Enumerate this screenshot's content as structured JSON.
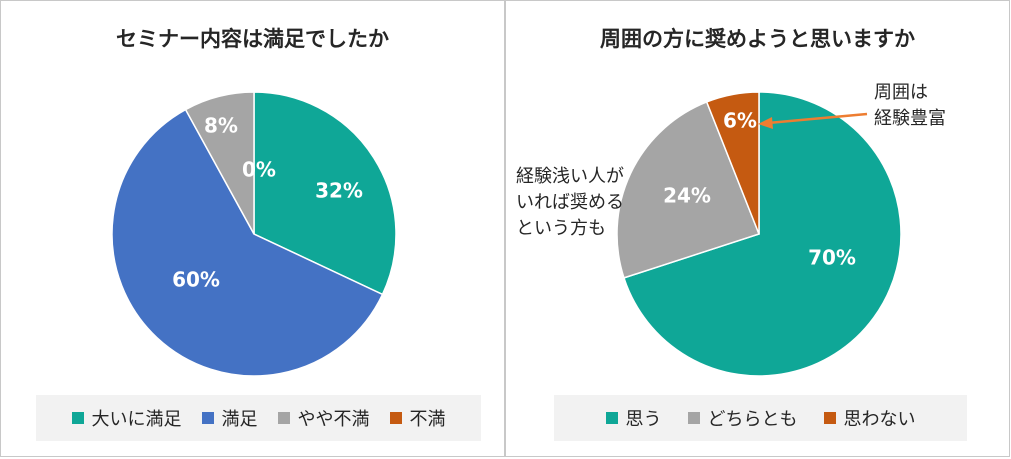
{
  "chart_data": [
    {
      "type": "pie",
      "title": "セミナー内容は満足でしたか",
      "categories": [
        "大いに満足",
        "満足",
        "やや不満",
        "不満"
      ],
      "values": [
        32,
        60,
        8,
        0
      ],
      "labels": [
        "32%",
        "60%",
        "8%",
        "0%"
      ],
      "colors": [
        "#0fa797",
        "#4472c4",
        "#a5a5a5",
        "#c55a11"
      ],
      "legend_placement": "bottom"
    },
    {
      "type": "pie",
      "title": "周囲の方に奨めようと思いますか",
      "categories": [
        "思う",
        "どちらとも",
        "思わない"
      ],
      "values": [
        70,
        24,
        6
      ],
      "labels": [
        "70%",
        "24%",
        "6%"
      ],
      "colors": [
        "#0fa797",
        "#a5a5a5",
        "#c55a11"
      ],
      "legend_placement": "bottom",
      "annotations": [
        {
          "lines": [
            "経験浅い人が",
            "いれば奨める",
            "という方も"
          ]
        },
        {
          "lines": [
            "周囲は",
            "経験豊富"
          ]
        }
      ]
    }
  ]
}
